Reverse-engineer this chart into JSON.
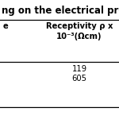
{
  "title_text": "ng on the electrical pro",
  "col_header_line1": "Receptivity ρ x",
  "col_header_line2": "10⁻³(Ωcm)",
  "left_col_header": "e",
  "values": [
    "119",
    "605"
  ],
  "bg_color": "#ffffff",
  "line_color": "#000000",
  "title_font_size": 8.5,
  "header_font_size": 7.2,
  "data_font_size": 7.2
}
